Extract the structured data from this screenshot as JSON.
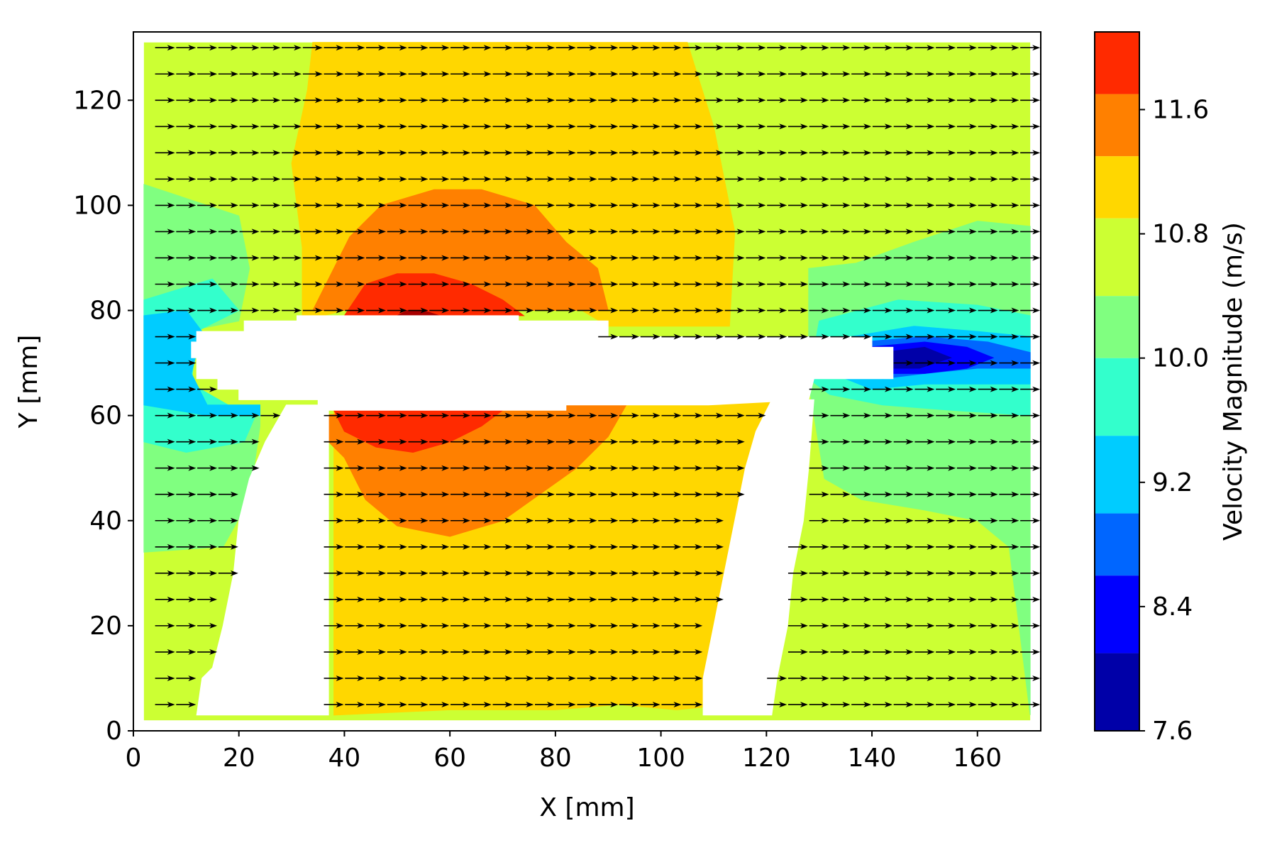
{
  "chart_data": {
    "type": "heatmap",
    "subtype": "filled-contour-with-quiver",
    "title": "",
    "xlabel": "X [mm]",
    "ylabel": "Y [mm]",
    "xlim": [
      0,
      172
    ],
    "ylim": [
      0,
      133
    ],
    "xticks": [
      0,
      20,
      40,
      60,
      80,
      100,
      120,
      140,
      160
    ],
    "yticks": [
      0,
      20,
      40,
      60,
      80,
      100,
      120
    ],
    "grid": false,
    "colorbar": {
      "label": "Velocity Magnitude (m/s)",
      "min": 7.6,
      "max": 12.1,
      "tick_values": [
        7.6,
        8.4,
        9.2,
        10.0,
        10.8,
        11.6
      ],
      "tick_labels": [
        "7.6",
        "8.4",
        "9.2",
        "10.0",
        "10.8",
        "11.6"
      ],
      "levels": [
        7.6,
        8.1,
        8.6,
        9.0,
        9.5,
        10.0,
        10.4,
        10.9,
        11.3,
        11.7,
        12.1
      ],
      "colors": [
        "#0000a8",
        "#0000ff",
        "#0066ff",
        "#00ccff",
        "#33ffcc",
        "#80ff80",
        "#ccff33",
        "#ffd700",
        "#ff8000",
        "#ff2a00",
        "#a80000"
      ]
    },
    "field": {
      "domain_x": [
        2,
        170
      ],
      "domain_y": [
        2,
        131
      ],
      "background_level": 6,
      "regions": [
        {
          "level": 7,
          "polygon": [
            [
              34,
              131
            ],
            [
              105,
              131
            ],
            [
              110,
              115
            ],
            [
              114,
              95
            ],
            [
              113,
              77
            ],
            [
              90,
              77
            ],
            [
              85,
              80
            ],
            [
              60,
              80
            ],
            [
              40,
              80
            ],
            [
              32,
              78
            ],
            [
              32,
              92
            ],
            [
              30,
              108
            ],
            [
              33,
              122
            ]
          ]
        },
        {
          "level": 7,
          "polygon": [
            [
              36,
              61
            ],
            [
              122,
              63
            ],
            [
              120,
              45
            ],
            [
              117,
              28
            ],
            [
              113,
              5
            ],
            [
              103,
              4
            ],
            [
              92,
              5
            ],
            [
              80,
              4
            ],
            [
              60,
              4
            ],
            [
              38,
              3
            ],
            [
              38,
              61
            ]
          ]
        },
        {
          "level": 8,
          "polygon": [
            [
              34,
              80
            ],
            [
              90,
              80
            ],
            [
              88,
              88
            ],
            [
              82,
              93
            ],
            [
              76,
              100
            ],
            [
              66,
              103
            ],
            [
              57,
              103
            ],
            [
              47,
              100
            ],
            [
              41,
              94
            ],
            [
              37,
              86
            ]
          ]
        },
        {
          "level": 8,
          "polygon": [
            [
              34,
              60
            ],
            [
              94,
              63
            ],
            [
              90,
              56
            ],
            [
              84,
              50
            ],
            [
              77,
              45
            ],
            [
              70,
              40
            ],
            [
              60,
              37
            ],
            [
              50,
              39
            ],
            [
              44,
              44
            ],
            [
              40,
              52
            ],
            [
              36,
              56
            ]
          ]
        },
        {
          "level": 9,
          "polygon": [
            [
              40,
              79
            ],
            [
              74,
              79
            ],
            [
              70,
              82
            ],
            [
              64,
              85
            ],
            [
              57,
              87
            ],
            [
              50,
              87
            ],
            [
              44,
              85
            ]
          ]
        },
        {
          "level": 9,
          "polygon": [
            [
              38,
              61
            ],
            [
              70,
              61
            ],
            [
              66,
              58
            ],
            [
              60,
              55
            ],
            [
              53,
              53
            ],
            [
              46,
              54
            ],
            [
              40,
              57
            ]
          ]
        },
        {
          "level": 10,
          "polygon": [
            [
              50,
              79
            ],
            [
              58,
              79
            ],
            [
              55,
              80
            ],
            [
              52,
              80
            ]
          ]
        },
        {
          "level": 5,
          "polygon": [
            [
              2,
              104
            ],
            [
              20,
              98
            ],
            [
              22,
              88
            ],
            [
              20,
              78
            ],
            [
              10,
              76
            ],
            [
              9,
              66
            ],
            [
              15,
              62
            ],
            [
              24,
              62
            ],
            [
              24,
              58
            ],
            [
              22,
              44
            ],
            [
              17,
              35
            ],
            [
              2,
              34
            ]
          ]
        },
        {
          "level": 5,
          "polygon": [
            [
              128,
              88
            ],
            [
              137,
              89
            ],
            [
              148,
              93
            ],
            [
              160,
              97
            ],
            [
              170,
              96
            ],
            [
              170,
              3
            ],
            [
              166,
              35
            ],
            [
              160,
              40
            ],
            [
              150,
              42
            ],
            [
              138,
              44
            ],
            [
              131,
              48
            ],
            [
              129,
              60
            ],
            [
              128,
              66
            ]
          ]
        },
        {
          "level": 4,
          "polygon": [
            [
              2,
              82
            ],
            [
              15,
              86
            ],
            [
              20,
              80
            ],
            [
              12,
              76
            ],
            [
              11,
              66
            ],
            [
              18,
              62
            ],
            [
              24,
              62
            ],
            [
              21,
              55
            ],
            [
              10,
              53
            ],
            [
              2,
              55
            ]
          ]
        },
        {
          "level": 4,
          "polygon": [
            [
              130,
              78
            ],
            [
              145,
              82
            ],
            [
              160,
              81
            ],
            [
              170,
              79
            ],
            [
              170,
              60
            ],
            [
              155,
              61
            ],
            [
              142,
              62
            ],
            [
              132,
              64
            ],
            [
              128,
              67
            ]
          ]
        },
        {
          "level": 3,
          "polygon": [
            [
              2,
              79
            ],
            [
              10,
              80
            ],
            [
              13,
              76
            ],
            [
              11,
              68
            ],
            [
              14,
              62
            ],
            [
              24,
              62
            ],
            [
              24,
              60
            ],
            [
              14,
              60
            ],
            [
              2,
              62
            ]
          ]
        },
        {
          "level": 3,
          "polygon": [
            [
              136,
              75
            ],
            [
              148,
              77
            ],
            [
              160,
              76
            ],
            [
              170,
              75
            ],
            [
              170,
              66
            ],
            [
              160,
              66
            ],
            [
              150,
              66
            ],
            [
              140,
              65
            ],
            [
              135,
              67
            ]
          ]
        },
        {
          "level": 2,
          "polygon": [
            [
              138,
              74
            ],
            [
              150,
              75
            ],
            [
              162,
              74
            ],
            [
              170,
              72
            ],
            [
              170,
              69
            ],
            [
              160,
              69
            ],
            [
              150,
              68
            ],
            [
              142,
              67
            ],
            [
              137,
              69
            ]
          ]
        },
        {
          "level": 1,
          "polygon": [
            [
              139,
              73
            ],
            [
              150,
              74
            ],
            [
              158,
              73
            ],
            [
              163,
              71
            ],
            [
              158,
              69
            ],
            [
              150,
              68
            ],
            [
              143,
              68
            ],
            [
              139,
              70
            ]
          ]
        },
        {
          "level": 0,
          "polygon": [
            [
              142,
              72
            ],
            [
              150,
              73
            ],
            [
              155,
              71
            ],
            [
              149,
              69
            ],
            [
              143,
              69
            ]
          ]
        }
      ],
      "masks": [
        {
          "name": "horizontal-strut",
          "polygon": [
            [
              12,
              76
            ],
            [
              21,
              76
            ],
            [
              21,
              78
            ],
            [
              31,
              78
            ],
            [
              31,
              79
            ],
            [
              73,
              79
            ],
            [
              73,
              78
            ],
            [
              90,
              78
            ],
            [
              90,
              75
            ],
            [
              125,
              75
            ],
            [
              130,
              75
            ],
            [
              140,
              75
            ],
            [
              140,
              73
            ],
            [
              144,
              73
            ],
            [
              144,
              67
            ],
            [
              129,
              67
            ],
            [
              128,
              63
            ],
            [
              109,
              62
            ],
            [
              82,
              62
            ],
            [
              82,
              61
            ],
            [
              35,
              61
            ],
            [
              35,
              63
            ],
            [
              20,
              63
            ],
            [
              20,
              65
            ],
            [
              16,
              65
            ],
            [
              16,
              67
            ],
            [
              12,
              67
            ],
            [
              12,
              71
            ],
            [
              11,
              71
            ],
            [
              11,
              74
            ],
            [
              12,
              74
            ]
          ]
        },
        {
          "name": "left-post",
          "polygon": [
            [
              29,
              62
            ],
            [
              37,
              62
            ],
            [
              37,
              3
            ],
            [
              12,
              3
            ],
            [
              13,
              10
            ],
            [
              15,
              12
            ],
            [
              17,
              20
            ],
            [
              19,
              30
            ],
            [
              20,
              40
            ],
            [
              22,
              48
            ],
            [
              25,
              55
            ]
          ]
        },
        {
          "name": "right-post",
          "polygon": [
            [
              121,
              63
            ],
            [
              129,
              63
            ],
            [
              128,
              50
            ],
            [
              127,
              40
            ],
            [
              125,
              30
            ],
            [
              124,
              20
            ],
            [
              122,
              10
            ],
            [
              121,
              3
            ],
            [
              108,
              3
            ],
            [
              108,
              10
            ],
            [
              110,
              20
            ],
            [
              112,
              30
            ],
            [
              114,
              40
            ],
            [
              116,
              50
            ],
            [
              118,
              57
            ]
          ]
        }
      ]
    },
    "vectors": {
      "x": [
        6,
        10,
        14,
        18,
        22,
        26,
        30,
        34,
        38,
        42,
        46,
        50,
        54,
        58,
        62,
        66,
        70,
        74,
        78,
        82,
        86,
        90,
        94,
        98,
        102,
        106,
        110,
        114,
        118,
        122,
        126,
        130,
        134,
        138,
        142,
        146,
        150,
        154,
        158,
        162,
        166,
        170
      ],
      "y": [
        5,
        10,
        15,
        20,
        25,
        30,
        35,
        40,
        45,
        50,
        55,
        60,
        65,
        70,
        75,
        80,
        85,
        90,
        95,
        100,
        105,
        110,
        115,
        120,
        125,
        130
      ],
      "u": 1,
      "v": 0,
      "direction": "+x"
    }
  }
}
